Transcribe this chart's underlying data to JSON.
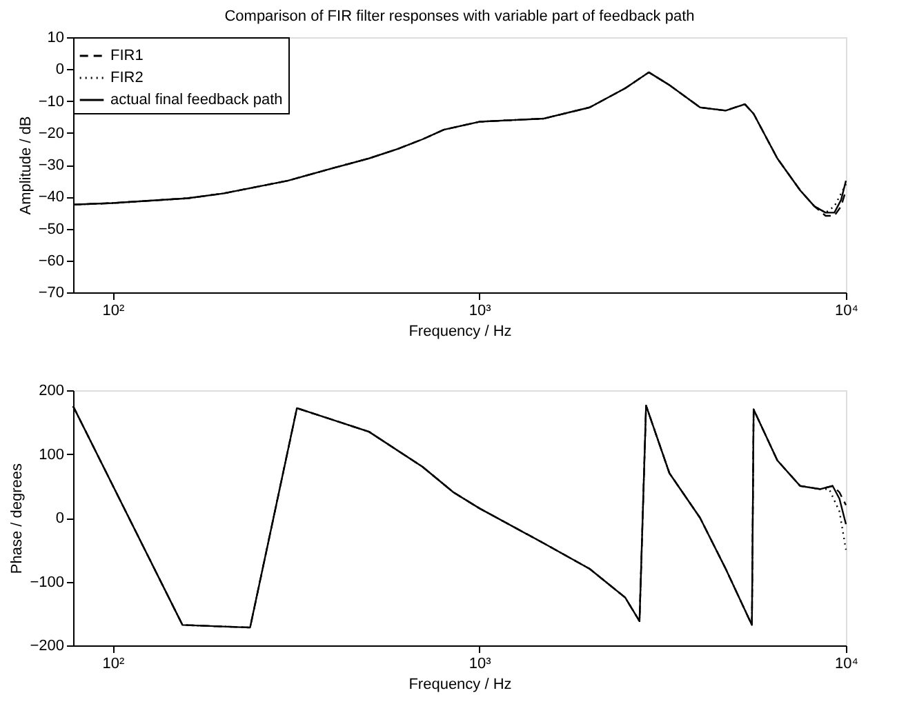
{
  "chart_data": [
    {
      "type": "line",
      "title": "Comparison of FIR filter responses with variable part of feedback path",
      "xlabel": "Frequency / Hz",
      "ylabel": "Amplitude / dB",
      "log": "x",
      "grid": false,
      "legend": "top left",
      "marker": "none",
      "xlim": [
        78,
        10000
      ],
      "xticks": [
        {
          "value": 100,
          "label": "10²"
        },
        {
          "value": 1000,
          "label": "10³"
        },
        {
          "value": 10000,
          "label": "10⁴"
        }
      ],
      "ylim": [
        -70,
        10
      ],
      "yticks": [
        -70,
        -60,
        -50,
        -40,
        -30,
        -20,
        -10,
        0,
        10
      ],
      "series": [
        {
          "name": "FIR1",
          "color": "#000000",
          "line_style": "dashed",
          "x": [
            78,
            100,
            160,
            200,
            300,
            400,
            500,
            600,
            700,
            800,
            1000,
            1500,
            2000,
            2500,
            2900,
            3300,
            4000,
            4700,
            5300,
            5600,
            6500,
            7500,
            8200,
            8800,
            9300,
            9700,
            10000
          ],
          "values": [
            -42.5,
            -42,
            -40.5,
            -39,
            -35,
            -31,
            -28,
            -25,
            -22,
            -19,
            -16.5,
            -15.5,
            -12,
            -6,
            -1,
            -5,
            -12,
            -13,
            -11,
            -14,
            -28,
            -38,
            -43,
            -46,
            -46,
            -43,
            -38
          ]
        },
        {
          "name": "FIR2",
          "color": "#000000",
          "line_style": "dotted",
          "x": [
            78,
            100,
            160,
            200,
            300,
            400,
            500,
            600,
            700,
            800,
            1000,
            1500,
            2000,
            2500,
            2900,
            3300,
            4000,
            4700,
            5300,
            5600,
            6500,
            7500,
            8200,
            8800,
            9300,
            9700,
            10000
          ],
          "values": [
            -42.5,
            -42,
            -40.5,
            -39,
            -35,
            -31,
            -28,
            -25,
            -22,
            -19,
            -16.5,
            -15.5,
            -12,
            -6,
            -1,
            -5,
            -12,
            -13,
            -11,
            -14,
            -28,
            -38,
            -43,
            -45,
            -43,
            -39,
            -36
          ]
        },
        {
          "name": "actual final feedback path",
          "color": "#000000",
          "line_style": "solid",
          "x": [
            78,
            100,
            160,
            200,
            300,
            400,
            500,
            600,
            700,
            800,
            1000,
            1500,
            2000,
            2500,
            2900,
            3300,
            4000,
            4700,
            5300,
            5600,
            6500,
            7500,
            8200,
            8800,
            9300,
            9700,
            10000
          ],
          "values": [
            -42.5,
            -42,
            -40.5,
            -39,
            -35,
            -31,
            -28,
            -25,
            -22,
            -19,
            -16.5,
            -15.5,
            -12,
            -6,
            -1,
            -5,
            -12,
            -13,
            -11,
            -14,
            -28,
            -38,
            -43,
            -45,
            -45,
            -41,
            -35
          ]
        }
      ]
    },
    {
      "type": "line",
      "xlabel": "Frequency / Hz",
      "ylabel": "Phase / degrees",
      "log": "x",
      "grid": false,
      "legend": false,
      "marker": "none",
      "xlim": [
        78,
        10000
      ],
      "xticks": [
        {
          "value": 100,
          "label": "10²"
        },
        {
          "value": 1000,
          "label": "10³"
        },
        {
          "value": 10000,
          "label": "10⁴"
        }
      ],
      "ylim": [
        -200,
        200
      ],
      "yticks": [
        -200,
        -100,
        0,
        100,
        200
      ],
      "series": [
        {
          "color": "#000000",
          "line_style": "dashed",
          "x": [
            78,
            155,
            237,
            318,
            500,
            700,
            850,
            1000,
            1500,
            2000,
            2500,
            2735,
            2850,
            3300,
            4000,
            4700,
            5540,
            5600,
            6500,
            7500,
            8500,
            9200,
            9600,
            10000
          ],
          "values": [
            175,
            -168,
            -172,
            172,
            135,
            80,
            40,
            15,
            -40,
            -80,
            -125,
            -162,
            176,
            70,
            0,
            -80,
            -168,
            170,
            90,
            50,
            45,
            50,
            40,
            20
          ]
        },
        {
          "color": "#000000",
          "line_style": "dotted",
          "x": [
            78,
            155,
            237,
            318,
            500,
            700,
            850,
            1000,
            1500,
            2000,
            2500,
            2735,
            2850,
            3300,
            4000,
            4700,
            5540,
            5600,
            6500,
            7500,
            8500,
            9000,
            9600,
            10000
          ],
          "values": [
            175,
            -168,
            -172,
            172,
            135,
            80,
            40,
            15,
            -40,
            -80,
            -125,
            -162,
            176,
            70,
            0,
            -80,
            -168,
            170,
            90,
            50,
            45,
            45,
            10,
            -50
          ]
        },
        {
          "color": "#000000",
          "line_style": "solid",
          "x": [
            78,
            155,
            237,
            318,
            500,
            700,
            850,
            1000,
            1500,
            2000,
            2500,
            2735,
            2850,
            3300,
            4000,
            4700,
            5540,
            5600,
            6500,
            7500,
            8500,
            9200,
            9600,
            10000
          ],
          "values": [
            175,
            -168,
            -172,
            172,
            135,
            80,
            40,
            15,
            -40,
            -80,
            -125,
            -162,
            176,
            70,
            0,
            -80,
            -168,
            170,
            90,
            50,
            45,
            50,
            30,
            -10
          ]
        }
      ]
    }
  ]
}
